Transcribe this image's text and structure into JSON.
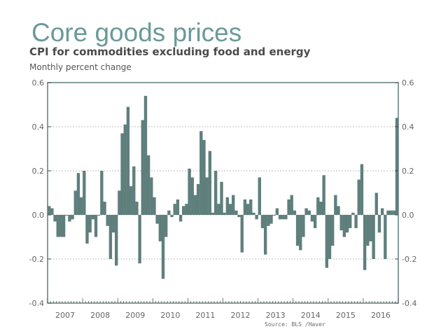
{
  "header": {
    "title": "Core goods prices",
    "subtitle": "CPI for commodities excluding food and energy",
    "units": "Monthly percent change"
  },
  "source": "Source: BLS /Haver",
  "colors": {
    "bar": "#5f7f7c",
    "title": "#6a9a98",
    "axis": "#5f7f7c",
    "grid": "#aaaaaa"
  },
  "chart_data": {
    "type": "bar",
    "title": "Core goods prices",
    "subtitle": "CPI for commodities excluding food and energy",
    "xlabel": "",
    "ylabel": "Monthly percent change",
    "ylim": [
      -0.4,
      0.6
    ],
    "yticks": [
      -0.4,
      -0.2,
      0.0,
      0.2,
      0.4,
      0.6
    ],
    "ytick_labels": [
      "-0.4",
      "-0.2",
      "0.0",
      "0.2",
      "0.4",
      "0.6"
    ],
    "grid": true,
    "dual_y_axis": true,
    "x_start": "2007-01",
    "frequency": "monthly",
    "year_labels": [
      "2007",
      "2008",
      "2009",
      "2010",
      "2011",
      "2012",
      "2013",
      "2014",
      "2015",
      "2016"
    ],
    "values": [
      0.04,
      0.03,
      -0.03,
      -0.1,
      -0.1,
      -0.1,
      0.0,
      -0.03,
      -0.02,
      0.11,
      0.19,
      0.08,
      0.2,
      -0.13,
      -0.08,
      -0.02,
      -0.1,
      0.0,
      0.2,
      0.06,
      -0.05,
      -0.2,
      -0.08,
      -0.23,
      0.11,
      0.37,
      0.41,
      0.49,
      0.13,
      0.22,
      0.06,
      -0.22,
      0.43,
      0.54,
      0.27,
      0.17,
      0.08,
      -0.04,
      -0.12,
      -0.29,
      -0.1,
      0.02,
      -0.01,
      0.05,
      0.07,
      -0.03,
      0.04,
      0.05,
      0.21,
      0.17,
      0.09,
      0.14,
      0.38,
      0.34,
      0.17,
      0.29,
      0.01,
      0.2,
      0.05,
      0.15,
      0.01,
      0.08,
      0.05,
      0.09,
      0.02,
      -0.01,
      -0.17,
      0.07,
      0.05,
      0.07,
      0.01,
      -0.02,
      0.17,
      -0.06,
      -0.18,
      -0.05,
      -0.04,
      0.0,
      0.03,
      -0.02,
      -0.02,
      -0.02,
      0.07,
      0.09,
      0.02,
      -0.14,
      -0.16,
      -0.1,
      0.03,
      0.02,
      -0.03,
      -0.06,
      0.08,
      0.06,
      0.18,
      -0.24,
      -0.2,
      -0.14,
      0.09,
      0.04,
      -0.07,
      -0.1,
      -0.08,
      -0.06,
      0.01,
      -0.06,
      0.16,
      0.23,
      -0.25,
      -0.14,
      -0.12,
      -0.2,
      0.1,
      -0.08,
      0.03,
      -0.2,
      0.02,
      0.02,
      0.02,
      0.44
    ]
  }
}
